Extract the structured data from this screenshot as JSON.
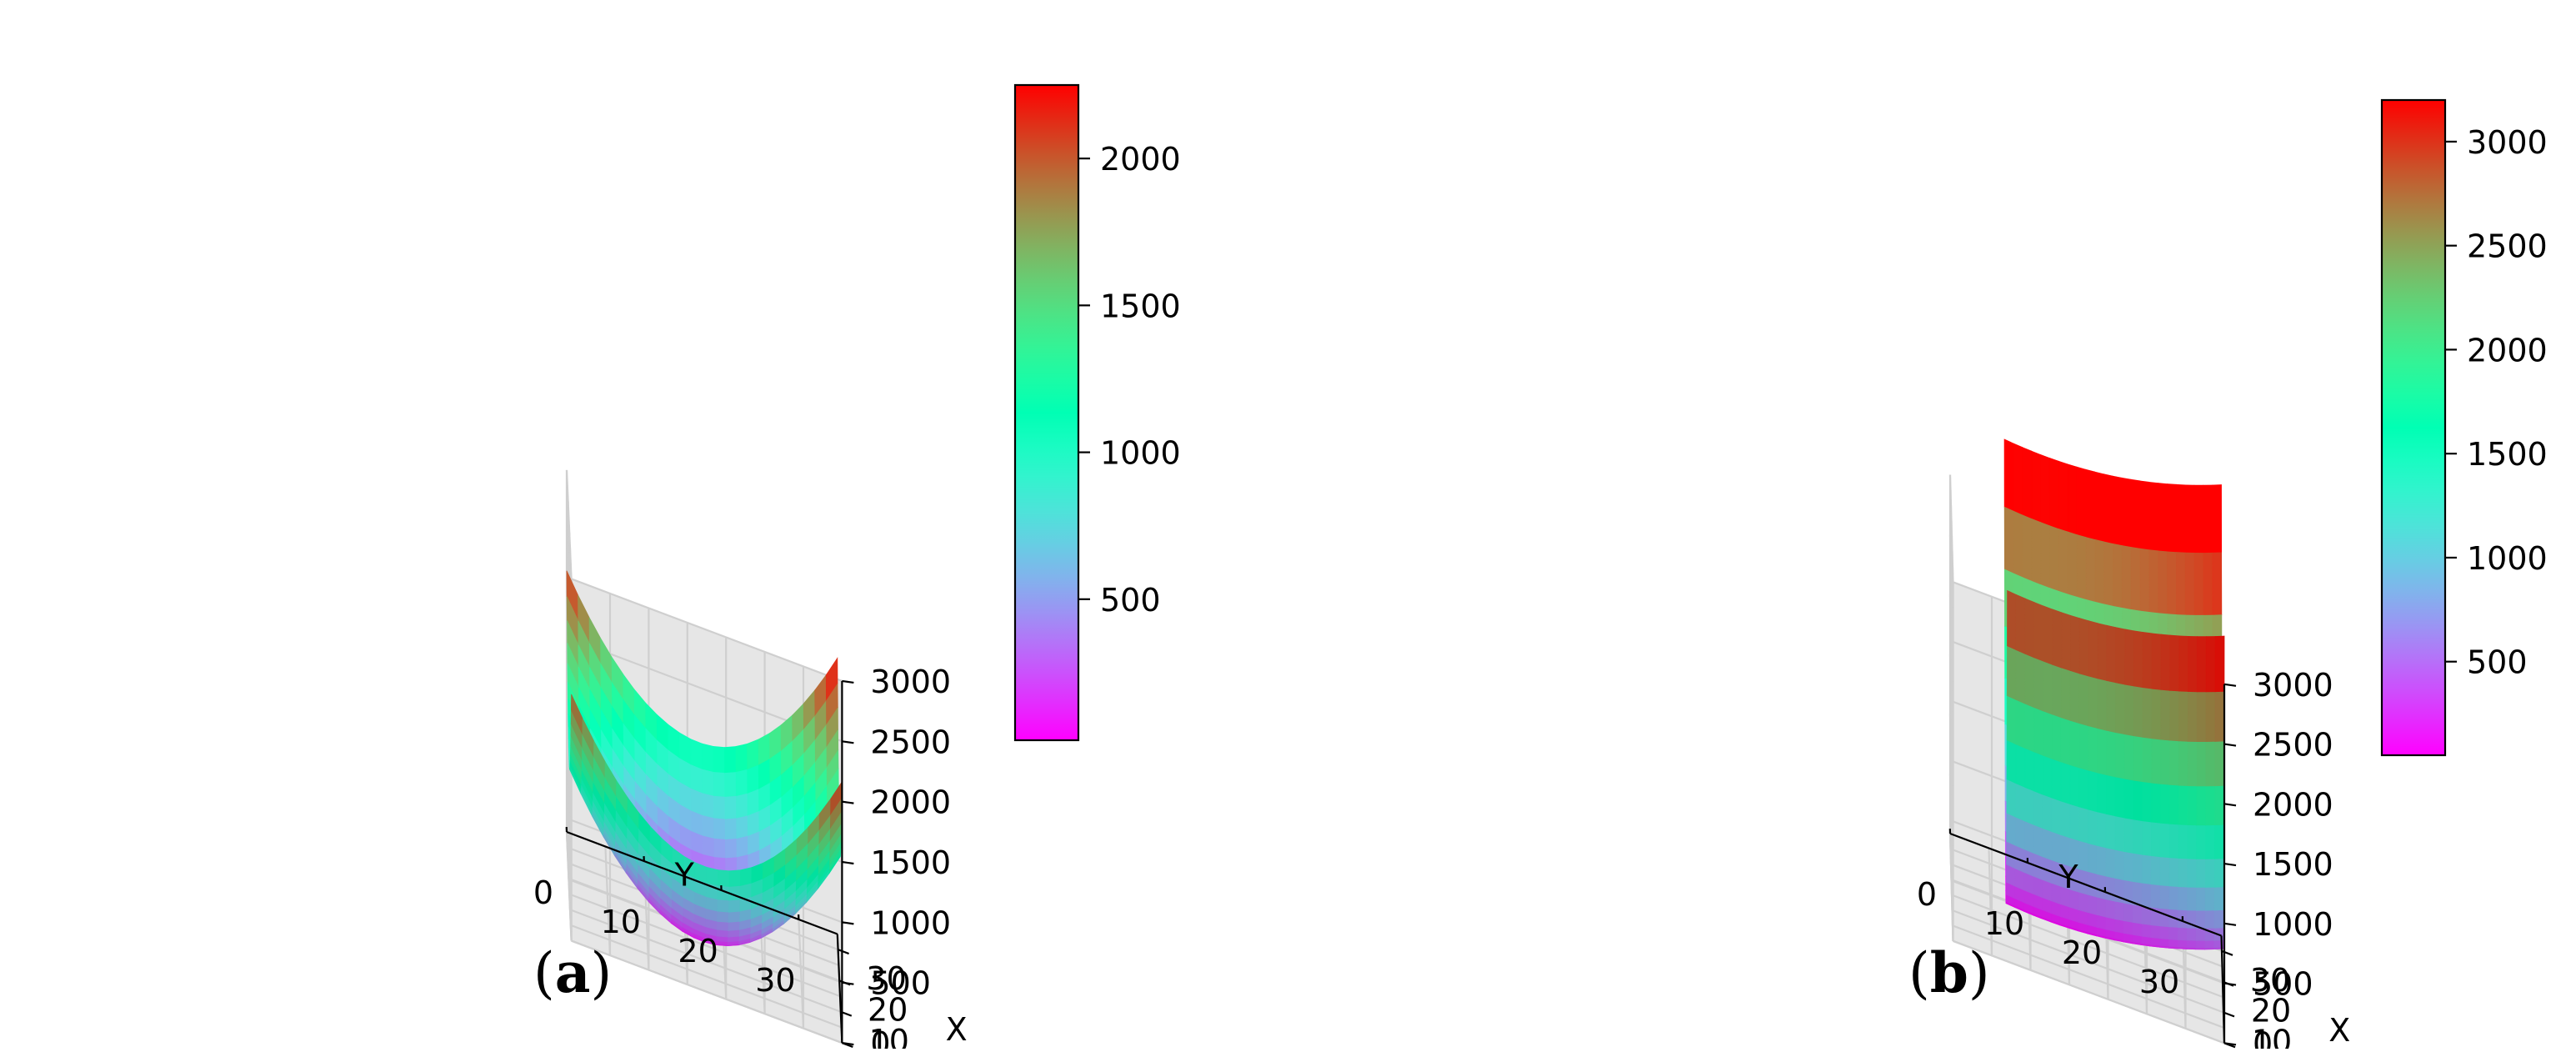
{
  "figure": {
    "panel_labels": [
      "a",
      "b"
    ]
  },
  "chart_data": [
    {
      "type": "surface3d",
      "panel": "a",
      "xlabel": "X",
      "ylabel": "Y",
      "zlabel": "",
      "x_ticks": [
        0,
        10,
        20,
        30
      ],
      "y_ticks": [
        0,
        10,
        20,
        30
      ],
      "z_ticks": [
        0,
        500,
        1000,
        1500,
        2000,
        2500,
        3000
      ],
      "xlim": [
        0,
        35
      ],
      "ylim": [
        0,
        35
      ],
      "zlim": [
        0,
        3000
      ],
      "grid": true,
      "colormap": "rainbow",
      "colorbar": {
        "ticks": [
          500,
          1000,
          1500,
          2000
        ],
        "range": [
          20,
          2250
        ]
      },
      "surface": {
        "model": "bowl",
        "cx": 17,
        "cy": 17,
        "a": 3.5,
        "b": 3.5,
        "ymin": 0,
        "z_min": 20,
        "z_max_reported": 2250
      }
    },
    {
      "type": "surface3d",
      "panel": "b",
      "xlabel": "X",
      "ylabel": "Y",
      "zlabel": "",
      "x_ticks": [
        0,
        10,
        20,
        30
      ],
      "y_ticks": [
        0,
        10,
        20,
        30
      ],
      "z_ticks": [
        0,
        500,
        1000,
        1500,
        2000,
        2500,
        3000
      ],
      "xlim": [
        0,
        35
      ],
      "ylim": [
        0,
        35
      ],
      "zlim": [
        0,
        3000
      ],
      "grid": true,
      "colormap": "rainbow",
      "colorbar": {
        "ticks": [
          500,
          1000,
          1500,
          2000,
          2500,
          3000
        ],
        "range": [
          50,
          3200
        ]
      },
      "surface": {
        "model": "valley",
        "cx": 17,
        "cy": 12,
        "a": 10.5,
        "b": 0.6,
        "ymin": 7,
        "z_min": 50,
        "z_max_reported": 3200
      }
    }
  ]
}
